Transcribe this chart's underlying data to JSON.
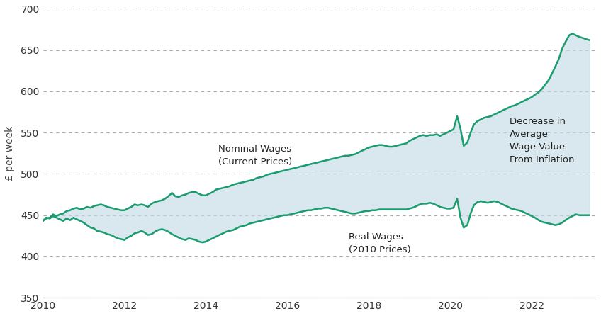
{
  "ylabel": "£ per week",
  "ylim": [
    350,
    700
  ],
  "yticks": [
    350,
    400,
    450,
    500,
    550,
    600,
    650,
    700
  ],
  "xlim": [
    2010.0,
    2023.58
  ],
  "xticks": [
    2010,
    2012,
    2014,
    2016,
    2018,
    2020,
    2022
  ],
  "line_color": "#1b9c6e",
  "fill_color": "#c5dce6",
  "fill_alpha": 0.65,
  "background_color": "#ffffff",
  "label_nominal": "Nominal Wages\n(Current Prices)",
  "label_real": "Real Wages\n(2010 Prices)",
  "label_decrease": "Decrease in\nAverage\nWage Value\nFrom Inflation",
  "nominal_x": [
    2010.0,
    2010.08,
    2010.17,
    2010.25,
    2010.33,
    2010.42,
    2010.5,
    2010.58,
    2010.67,
    2010.75,
    2010.83,
    2010.92,
    2011.0,
    2011.08,
    2011.17,
    2011.25,
    2011.33,
    2011.42,
    2011.5,
    2011.58,
    2011.67,
    2011.75,
    2011.83,
    2011.92,
    2012.0,
    2012.08,
    2012.17,
    2012.25,
    2012.33,
    2012.42,
    2012.5,
    2012.58,
    2012.67,
    2012.75,
    2012.83,
    2012.92,
    2013.0,
    2013.08,
    2013.17,
    2013.25,
    2013.33,
    2013.42,
    2013.5,
    2013.58,
    2013.67,
    2013.75,
    2013.83,
    2013.92,
    2014.0,
    2014.08,
    2014.17,
    2014.25,
    2014.33,
    2014.42,
    2014.5,
    2014.58,
    2014.67,
    2014.75,
    2014.83,
    2014.92,
    2015.0,
    2015.08,
    2015.17,
    2015.25,
    2015.33,
    2015.42,
    2015.5,
    2015.58,
    2015.67,
    2015.75,
    2015.83,
    2015.92,
    2016.0,
    2016.08,
    2016.17,
    2016.25,
    2016.33,
    2016.42,
    2016.5,
    2016.58,
    2016.67,
    2016.75,
    2016.83,
    2016.92,
    2017.0,
    2017.08,
    2017.17,
    2017.25,
    2017.33,
    2017.42,
    2017.5,
    2017.58,
    2017.67,
    2017.75,
    2017.83,
    2017.92,
    2018.0,
    2018.08,
    2018.17,
    2018.25,
    2018.33,
    2018.42,
    2018.5,
    2018.58,
    2018.67,
    2018.75,
    2018.83,
    2018.92,
    2019.0,
    2019.08,
    2019.17,
    2019.25,
    2019.33,
    2019.42,
    2019.5,
    2019.58,
    2019.67,
    2019.75,
    2019.83,
    2019.92,
    2020.0,
    2020.08,
    2020.17,
    2020.25,
    2020.33,
    2020.42,
    2020.5,
    2020.58,
    2020.67,
    2020.75,
    2020.83,
    2020.92,
    2021.0,
    2021.08,
    2021.17,
    2021.25,
    2021.33,
    2021.42,
    2021.5,
    2021.58,
    2021.67,
    2021.75,
    2021.83,
    2021.92,
    2022.0,
    2022.08,
    2022.17,
    2022.25,
    2022.33,
    2022.42,
    2022.5,
    2022.58,
    2022.67,
    2022.75,
    2022.83,
    2022.92,
    2023.0,
    2023.08,
    2023.17,
    2023.42
  ],
  "nominal_y": [
    443,
    446,
    447,
    451,
    449,
    451,
    452,
    455,
    456,
    458,
    459,
    457,
    458,
    460,
    459,
    461,
    462,
    463,
    462,
    460,
    459,
    458,
    457,
    456,
    456,
    458,
    460,
    463,
    462,
    463,
    462,
    460,
    464,
    466,
    467,
    468,
    470,
    473,
    477,
    473,
    472,
    474,
    475,
    477,
    478,
    478,
    476,
    474,
    474,
    476,
    478,
    481,
    482,
    483,
    484,
    485,
    487,
    488,
    489,
    490,
    491,
    492,
    493,
    495,
    496,
    497,
    499,
    500,
    501,
    502,
    503,
    504,
    505,
    506,
    507,
    508,
    509,
    510,
    511,
    512,
    513,
    514,
    515,
    516,
    517,
    518,
    519,
    520,
    521,
    522,
    522,
    523,
    524,
    526,
    528,
    530,
    532,
    533,
    534,
    535,
    535,
    534,
    533,
    533,
    534,
    535,
    536,
    537,
    540,
    542,
    544,
    546,
    547,
    546,
    547,
    547,
    548,
    546,
    548,
    550,
    552,
    554,
    570,
    555,
    534,
    538,
    550,
    560,
    564,
    566,
    568,
    569,
    570,
    572,
    574,
    576,
    578,
    580,
    582,
    583,
    585,
    587,
    589,
    591,
    593,
    596,
    599,
    603,
    608,
    614,
    622,
    630,
    640,
    652,
    660,
    668,
    670,
    668,
    666,
    662
  ],
  "real_x": [
    2010.0,
    2010.08,
    2010.17,
    2010.25,
    2010.33,
    2010.42,
    2010.5,
    2010.58,
    2010.67,
    2010.75,
    2010.83,
    2010.92,
    2011.0,
    2011.08,
    2011.17,
    2011.25,
    2011.33,
    2011.42,
    2011.5,
    2011.58,
    2011.67,
    2011.75,
    2011.83,
    2011.92,
    2012.0,
    2012.08,
    2012.17,
    2012.25,
    2012.33,
    2012.42,
    2012.5,
    2012.58,
    2012.67,
    2012.75,
    2012.83,
    2012.92,
    2013.0,
    2013.08,
    2013.17,
    2013.25,
    2013.33,
    2013.42,
    2013.5,
    2013.58,
    2013.67,
    2013.75,
    2013.83,
    2013.92,
    2014.0,
    2014.08,
    2014.17,
    2014.25,
    2014.33,
    2014.42,
    2014.5,
    2014.58,
    2014.67,
    2014.75,
    2014.83,
    2014.92,
    2015.0,
    2015.08,
    2015.17,
    2015.25,
    2015.33,
    2015.42,
    2015.5,
    2015.58,
    2015.67,
    2015.75,
    2015.83,
    2015.92,
    2016.0,
    2016.08,
    2016.17,
    2016.25,
    2016.33,
    2016.42,
    2016.5,
    2016.58,
    2016.67,
    2016.75,
    2016.83,
    2016.92,
    2017.0,
    2017.08,
    2017.17,
    2017.25,
    2017.33,
    2017.42,
    2017.5,
    2017.58,
    2017.67,
    2017.75,
    2017.83,
    2017.92,
    2018.0,
    2018.08,
    2018.17,
    2018.25,
    2018.33,
    2018.42,
    2018.5,
    2018.58,
    2018.67,
    2018.75,
    2018.83,
    2018.92,
    2019.0,
    2019.08,
    2019.17,
    2019.25,
    2019.33,
    2019.42,
    2019.5,
    2019.58,
    2019.67,
    2019.75,
    2019.83,
    2019.92,
    2020.0,
    2020.08,
    2020.17,
    2020.25,
    2020.33,
    2020.42,
    2020.5,
    2020.58,
    2020.67,
    2020.75,
    2020.83,
    2020.92,
    2021.0,
    2021.08,
    2021.17,
    2021.25,
    2021.33,
    2021.42,
    2021.5,
    2021.58,
    2021.67,
    2021.75,
    2021.83,
    2021.92,
    2022.0,
    2022.08,
    2022.17,
    2022.25,
    2022.33,
    2022.42,
    2022.5,
    2022.58,
    2022.67,
    2022.75,
    2022.83,
    2022.92,
    2023.0,
    2023.08,
    2023.17,
    2023.42
  ],
  "real_y": [
    443,
    447,
    446,
    449,
    447,
    445,
    443,
    446,
    444,
    447,
    445,
    443,
    441,
    438,
    435,
    434,
    431,
    430,
    429,
    427,
    426,
    424,
    422,
    421,
    420,
    423,
    425,
    428,
    429,
    431,
    429,
    426,
    427,
    430,
    432,
    433,
    432,
    430,
    427,
    425,
    423,
    421,
    420,
    422,
    421,
    420,
    418,
    417,
    418,
    420,
    422,
    424,
    426,
    428,
    430,
    431,
    432,
    434,
    436,
    437,
    438,
    440,
    441,
    442,
    443,
    444,
    445,
    446,
    447,
    448,
    449,
    450,
    450,
    451,
    452,
    453,
    454,
    455,
    456,
    456,
    457,
    458,
    458,
    459,
    459,
    458,
    457,
    456,
    455,
    454,
    453,
    452,
    452,
    453,
    454,
    455,
    455,
    456,
    456,
    457,
    457,
    457,
    457,
    457,
    457,
    457,
    457,
    457,
    458,
    459,
    461,
    463,
    464,
    464,
    465,
    464,
    462,
    460,
    459,
    458,
    458,
    459,
    470,
    447,
    435,
    438,
    452,
    462,
    466,
    467,
    466,
    465,
    466,
    467,
    466,
    464,
    462,
    460,
    458,
    457,
    456,
    455,
    453,
    451,
    449,
    447,
    444,
    442,
    441,
    440,
    439,
    438,
    439,
    441,
    444,
    447,
    449,
    451,
    450,
    450
  ]
}
